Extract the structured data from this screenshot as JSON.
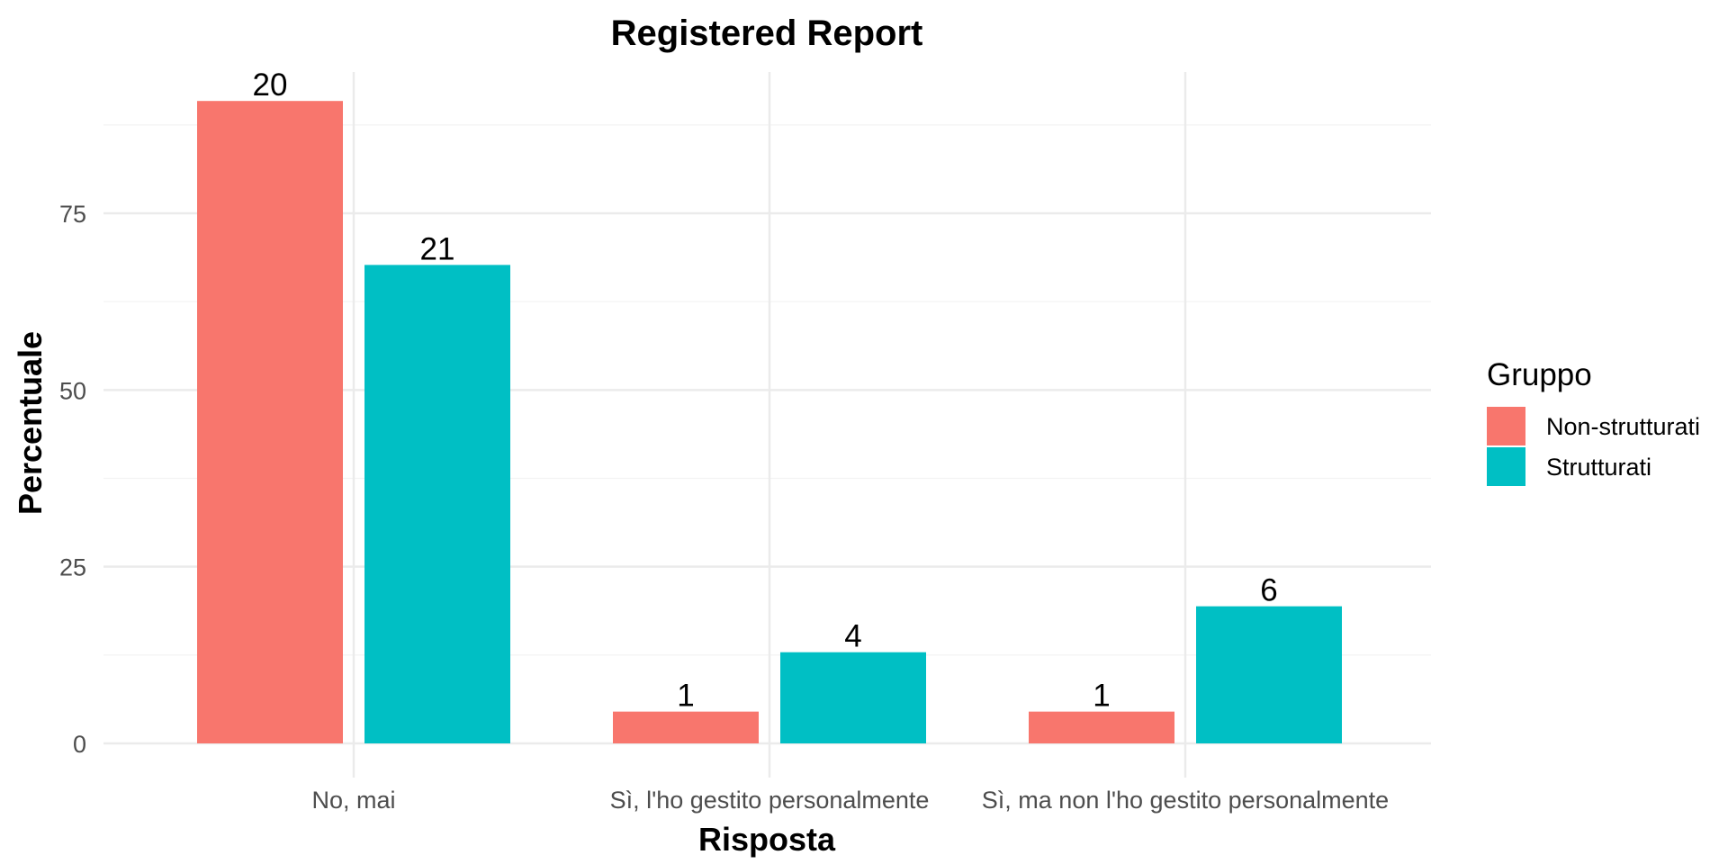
{
  "chart_data": {
    "type": "bar",
    "title": "Registered Report",
    "xlabel": "Risposta",
    "ylabel": "Percentuale",
    "categories": [
      "No, mai",
      "Sì, l'ho gestito personalmente",
      "Sì, ma non l'ho gestito personalmente"
    ],
    "series": [
      {
        "name": "Non-strutturati",
        "color": "#F8766D",
        "values": [
          90.9,
          4.5,
          4.5
        ],
        "labels": [
          "20",
          "1",
          "1"
        ]
      },
      {
        "name": "Strutturati",
        "color": "#00BFC4",
        "values": [
          67.7,
          12.9,
          19.4
        ],
        "labels": [
          "21",
          "4",
          "6"
        ]
      }
    ],
    "yticks": [
      0,
      25,
      50,
      75
    ],
    "ylim": [
      0,
      95
    ],
    "grid": true,
    "legend": {
      "title": "Gruppo",
      "position": "right"
    }
  }
}
